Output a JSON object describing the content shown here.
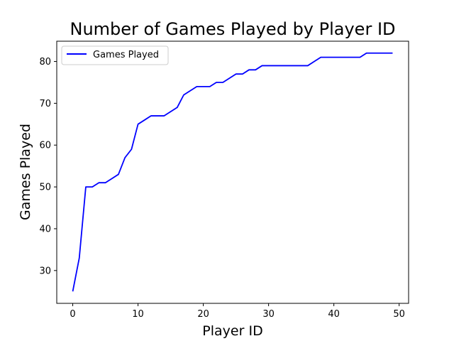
{
  "chart_data": {
    "type": "line",
    "title": "Number of Games Played by Player ID",
    "xlabel": "Player ID",
    "ylabel": "Games Played",
    "xlim": [
      -2.45,
      51.45
    ],
    "ylim": [
      22.15,
      84.85
    ],
    "xticks": [
      0,
      10,
      20,
      30,
      40,
      50
    ],
    "yticks": [
      30,
      40,
      50,
      60,
      70,
      80
    ],
    "grid": false,
    "legend": {
      "placement": "top-left"
    },
    "colors": {
      "line": "#0000ff",
      "axes": "#000000",
      "background": "#ffffff"
    },
    "series": [
      {
        "name": "Games Played",
        "x": [
          0,
          1,
          2,
          3,
          4,
          5,
          6,
          7,
          8,
          9,
          10,
          11,
          12,
          13,
          14,
          15,
          16,
          17,
          18,
          19,
          20,
          21,
          22,
          23,
          24,
          25,
          26,
          27,
          28,
          29,
          30,
          31,
          32,
          33,
          34,
          35,
          36,
          37,
          38,
          39,
          40,
          41,
          42,
          43,
          44,
          45,
          46,
          47,
          48,
          49
        ],
        "y": [
          25,
          33,
          50,
          50,
          51,
          51,
          52,
          53,
          57,
          59,
          65,
          66,
          67,
          67,
          67,
          68,
          69,
          72,
          73,
          74,
          74,
          74,
          75,
          75,
          76,
          77,
          77,
          78,
          78,
          79,
          79,
          79,
          79,
          79,
          79,
          79,
          79,
          80,
          81,
          81,
          81,
          81,
          81,
          81,
          81,
          82,
          82,
          82,
          82,
          82
        ]
      }
    ]
  }
}
